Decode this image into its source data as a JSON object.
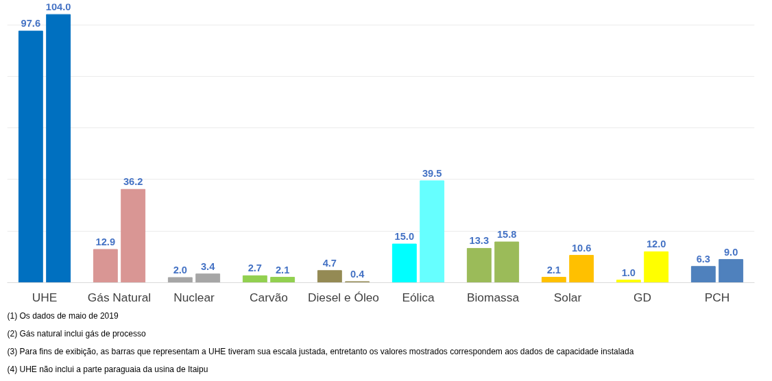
{
  "chart_data": {
    "type": "bar",
    "categories": [
      "UHE",
      "Gás Natural",
      "Nuclear",
      "Carvão",
      "Diesel e Óleo",
      "Eólica",
      "Biomassa",
      "Solar",
      "GD",
      "PCH"
    ],
    "series": [
      {
        "colors": [
          "#0070c0",
          "#d99694",
          "#a6a6a6",
          "#92d050",
          "#948a54",
          "#00ffff",
          "#9bbb59",
          "#ffc000",
          "#ffff00",
          "#4f81bd"
        ],
        "values": [
          97.6,
          12.9,
          2.0,
          2.7,
          4.7,
          15.0,
          13.3,
          2.1,
          1.0,
          6.3
        ],
        "value_labels": [
          "97.6",
          "12.9",
          "2.0",
          "2.7",
          "4.7",
          "15.0",
          "13.3",
          "2.1",
          "1.0",
          "6.3"
        ]
      },
      {
        "colors": [
          "#0070c0",
          "#d99694",
          "#a6a6a6",
          "#92d050",
          "#948a54",
          "#66ffff",
          "#9bbb59",
          "#ffc000",
          "#ffff00",
          "#4f81bd"
        ],
        "values": [
          104.0,
          36.2,
          3.4,
          2.1,
          0.4,
          39.5,
          15.8,
          10.6,
          12.0,
          9.0
        ],
        "value_labels": [
          "104.0",
          "36.2",
          "3.4",
          "2.1",
          "0.4",
          "39.5",
          "15.8",
          "10.6",
          "12.0",
          "9.0"
        ]
      }
    ],
    "grid": "y",
    "tick_labels": "x",
    "annotations": [
      "(1) Os dados de maio de 2019",
      "(2) Gás natural inclui gás de processo",
      "(3) Para fins de exibição, as barras que representam a UHE tiveram sua escala justada, entretanto os valores mostrados correspondem aos dados de capacidade instalada",
      "(4) UHE não inclui a parte paraguaia da usina de Itaipu"
    ]
  }
}
